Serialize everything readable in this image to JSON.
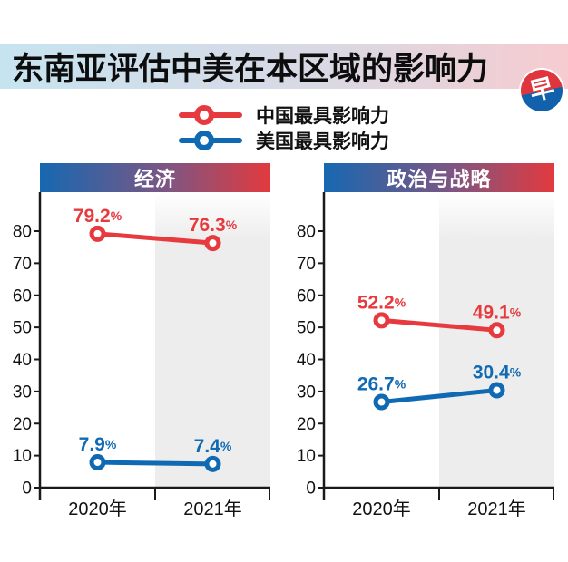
{
  "title": "东南亚评估中美在本区域的影响力",
  "logo_char": "早",
  "legend": [
    {
      "label": "中国最具影响力",
      "color": "#e73a3e"
    },
    {
      "label": "美国最具影响力",
      "color": "#0f6ab3"
    }
  ],
  "colors": {
    "china_red": "#e73a3e",
    "us_blue": "#0f6ab3",
    "band_gray": "#ededed",
    "axis": "#1a1a1a",
    "titlebar_left": "#c6e4f0",
    "titlebar_right": "#f6ccd0",
    "header_left": "#1668b1",
    "header_right": "#e23a3e",
    "logo_red": "#e0353c",
    "logo_blue": "#1261ad"
  },
  "chart_data": [
    {
      "type": "line",
      "title": "经济",
      "categories": [
        "2020年",
        "2021年"
      ],
      "series": [
        {
          "name": "中国最具影响力",
          "color": "#e73a3e",
          "values": [
            79.2,
            76.3
          ]
        },
        {
          "name": "美国最具影响力",
          "color": "#0f6ab3",
          "values": [
            7.9,
            7.4
          ]
        }
      ],
      "ylim": [
        0,
        80
      ],
      "yticks": [
        0,
        10,
        20,
        30,
        40,
        50,
        60,
        70,
        80
      ],
      "value_suffix": "%",
      "highlighted_category": "2021年",
      "grid": false,
      "legend_position": "top-center"
    },
    {
      "type": "line",
      "title": "政治与战略",
      "categories": [
        "2020年",
        "2021年"
      ],
      "series": [
        {
          "name": "中国最具影响力",
          "color": "#e73a3e",
          "values": [
            52.2,
            49.1
          ]
        },
        {
          "name": "美国最具影响力",
          "color": "#0f6ab3",
          "values": [
            26.7,
            30.4
          ]
        }
      ],
      "ylim": [
        0,
        80
      ],
      "yticks": [
        0,
        10,
        20,
        30,
        40,
        50,
        60,
        70,
        80
      ],
      "value_suffix": "%",
      "highlighted_category": "2021年",
      "grid": false,
      "legend_position": "top-center"
    }
  ]
}
